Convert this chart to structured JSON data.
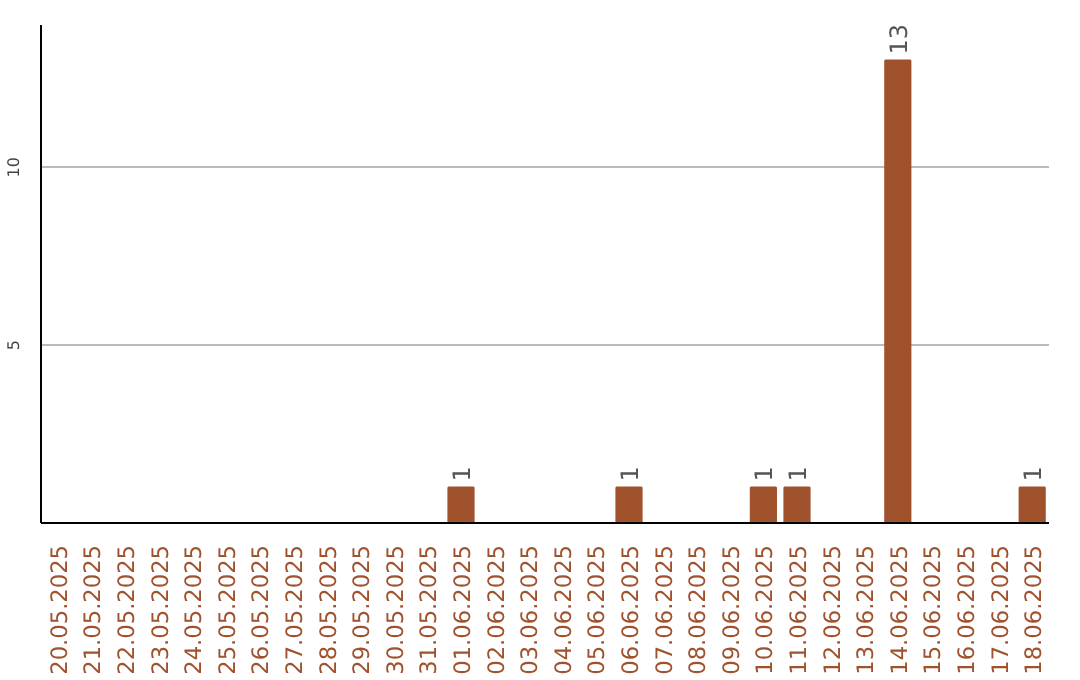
{
  "chart_data": {
    "type": "bar",
    "categories": [
      "20.05.2025",
      "21.05.2025",
      "22.05.2025",
      "23.05.2025",
      "24.05.2025",
      "25.05.2025",
      "26.05.2025",
      "27.05.2025",
      "28.05.2025",
      "29.05.2025",
      "30.05.2025",
      "31.05.2025",
      "01.06.2025",
      "02.06.2025",
      "03.06.2025",
      "04.06.2025",
      "05.06.2025",
      "06.06.2025",
      "07.06.2025",
      "08.06.2025",
      "09.06.2025",
      "10.06.2025",
      "11.06.2025",
      "12.06.2025",
      "13.06.2025",
      "14.06.2025",
      "15.06.2025",
      "16.06.2025",
      "17.06.2025",
      "18.06.2025"
    ],
    "values": [
      0,
      0,
      0,
      0,
      0,
      0,
      0,
      0,
      0,
      0,
      0,
      0,
      1,
      0,
      0,
      0,
      0,
      1,
      0,
      0,
      0,
      1,
      1,
      0,
      0,
      13,
      0,
      0,
      0,
      1
    ],
    "value_labels": [
      null,
      null,
      null,
      null,
      null,
      null,
      null,
      null,
      null,
      null,
      null,
      null,
      "1",
      null,
      null,
      null,
      null,
      "1",
      null,
      null,
      null,
      "1",
      "1",
      null,
      null,
      "13",
      null,
      null,
      null,
      "1"
    ],
    "color": "#a0522d",
    "ylim": [
      0,
      14
    ],
    "yticks": [
      5,
      10
    ],
    "grid": "y"
  }
}
